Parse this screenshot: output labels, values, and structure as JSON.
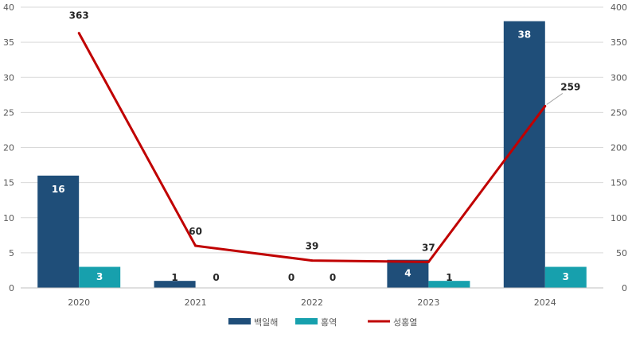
{
  "chart_data": {
    "type": "bar",
    "title": "",
    "categories": [
      "2020",
      "2021",
      "2022",
      "2023",
      "2024"
    ],
    "series": [
      {
        "name": "백일해",
        "type": "bar",
        "axis": "left",
        "color": "#1f4e79",
        "values": [
          16,
          1,
          0,
          4,
          38
        ],
        "labels": [
          "16",
          "1",
          "0",
          "4",
          "38"
        ]
      },
      {
        "name": "홍역",
        "type": "bar",
        "axis": "left",
        "color": "#17a0ad",
        "values": [
          3,
          0,
          0,
          1,
          3
        ],
        "labels": [
          "3",
          "0",
          "0",
          "1",
          "3"
        ]
      },
      {
        "name": "성홍열",
        "type": "line",
        "axis": "right",
        "color": "#c00000",
        "values": [
          363,
          60,
          39,
          37,
          259
        ],
        "labels": [
          "363",
          "60",
          "39",
          "37",
          "259"
        ]
      }
    ],
    "y_left": {
      "ylim": [
        0,
        40
      ],
      "ticks": [
        "0",
        "5",
        "10",
        "15",
        "20",
        "25",
        "30",
        "35",
        "40"
      ]
    },
    "y_right": {
      "ylim": [
        0,
        400
      ],
      "ticks": [
        "0",
        "50",
        "100",
        "150",
        "200",
        "250",
        "300",
        "350",
        "400"
      ]
    },
    "grid": true,
    "legend": "bottom"
  }
}
